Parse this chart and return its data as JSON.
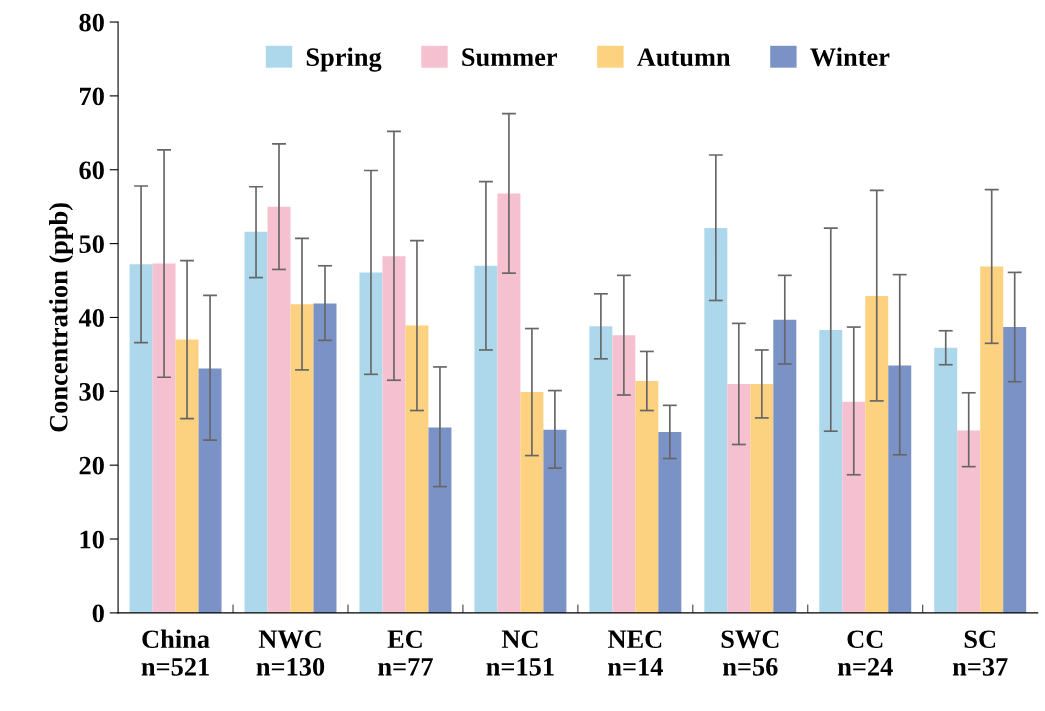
{
  "chart_data": {
    "type": "bar",
    "ylabel": "Concentration (ppb)",
    "categories": [
      "China\nn=521",
      "NWC\nn=130",
      "EC\nn=77",
      "NC\nn=151",
      "NEC\nn=14",
      "SWC\nn=56",
      "CC\nn=24",
      "SC\nn=37"
    ],
    "series": [
      {
        "name": "Spring",
        "color": "#add8ec",
        "values": [
          47.2,
          51.6,
          46.1,
          47.0,
          38.8,
          52.1,
          38.3,
          35.9
        ],
        "errors": [
          [
            36.6,
            57.8
          ],
          [
            45.4,
            57.7
          ],
          [
            32.3,
            59.9
          ],
          [
            35.6,
            58.4
          ],
          [
            34.4,
            43.2
          ],
          [
            42.3,
            62.0
          ],
          [
            24.6,
            52.1
          ],
          [
            33.6,
            38.2
          ]
        ]
      },
      {
        "name": "Summer",
        "color": "#f5c0cf",
        "values": [
          47.3,
          55.0,
          48.3,
          56.8,
          37.6,
          31.0,
          28.6,
          24.7
        ],
        "errors": [
          [
            31.9,
            62.7
          ],
          [
            46.5,
            63.5
          ],
          [
            31.5,
            65.2
          ],
          [
            46.0,
            67.6
          ],
          [
            29.5,
            45.7
          ],
          [
            22.8,
            39.2
          ],
          [
            18.7,
            38.7
          ],
          [
            19.8,
            29.8
          ]
        ]
      },
      {
        "name": "Autumn",
        "color": "#fcd17f",
        "values": [
          37.0,
          41.8,
          38.9,
          29.9,
          31.4,
          31.0,
          42.9,
          46.9
        ],
        "errors": [
          [
            26.3,
            47.7
          ],
          [
            32.9,
            50.7
          ],
          [
            27.4,
            50.4
          ],
          [
            21.3,
            38.5
          ],
          [
            27.4,
            35.4
          ],
          [
            26.4,
            35.6
          ],
          [
            28.7,
            57.2
          ],
          [
            36.5,
            57.3
          ]
        ]
      },
      {
        "name": "Winter",
        "color": "#7a92c6",
        "values": [
          33.1,
          41.9,
          25.1,
          24.8,
          24.5,
          39.7,
          33.5,
          38.7
        ],
        "errors": [
          [
            23.4,
            43.0
          ],
          [
            36.9,
            47.0
          ],
          [
            17.1,
            33.3
          ],
          [
            19.6,
            30.1
          ],
          [
            20.9,
            28.1
          ],
          [
            33.7,
            45.7
          ],
          [
            21.4,
            45.8
          ],
          [
            31.3,
            46.1
          ]
        ]
      }
    ],
    "ylim": [
      0,
      80
    ],
    "yticks": [
      0,
      10,
      20,
      30,
      40,
      50,
      60,
      70,
      80
    ],
    "grid": false,
    "legend": "top"
  }
}
